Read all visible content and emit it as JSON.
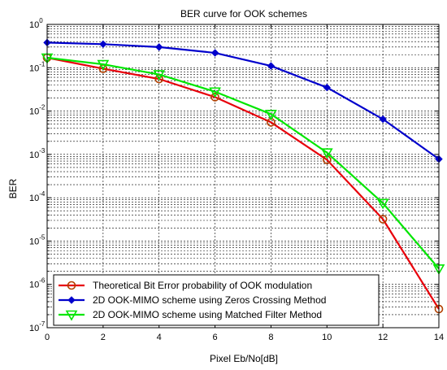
{
  "chart_data": {
    "type": "line",
    "title": "BER curve for OOK schemes",
    "xlabel": "Pixel Eb/No[dB]",
    "ylabel": "BER",
    "xlim": [
      0,
      14
    ],
    "ylim": [
      1e-07,
      1
    ],
    "yscale": "log",
    "x_ticks": [
      0,
      2,
      4,
      6,
      8,
      10,
      12,
      14
    ],
    "y_tick_exponents": [
      -7,
      -6,
      -5,
      -4,
      -3,
      -2,
      -1,
      0
    ],
    "grid": true,
    "legend_position": "bottom-left",
    "series": [
      {
        "name": "Theoretical Bit Error probability of OOK modulation",
        "color": "#e8000b",
        "marker": "circle",
        "marker_color": "#b34000",
        "x": [
          0,
          2,
          4,
          6,
          8,
          10,
          12,
          14
        ],
        "y": [
          0.17,
          0.095,
          0.055,
          0.021,
          0.0055,
          0.00075,
          3.2e-05,
          2.7e-07
        ]
      },
      {
        "name": "2D OOK-MIMO scheme using Zeros Crossing Method",
        "color": "#0000cc",
        "marker": "diamond",
        "marker_color": "#0000cc",
        "x": [
          0,
          2,
          4,
          6,
          8,
          10,
          12,
          14
        ],
        "y": [
          0.38,
          0.35,
          0.3,
          0.22,
          0.11,
          0.035,
          0.0065,
          0.00078
        ]
      },
      {
        "name": "2D OOK-MIMO scheme using Matched Filter Method",
        "color": "#00e600",
        "marker": "triangle-down",
        "marker_color": "#00e600",
        "x": [
          0,
          2,
          4,
          6,
          8,
          10,
          12,
          14
        ],
        "y": [
          0.17,
          0.12,
          0.07,
          0.028,
          0.0085,
          0.0011,
          7.5e-05,
          2.3e-06
        ]
      }
    ]
  }
}
